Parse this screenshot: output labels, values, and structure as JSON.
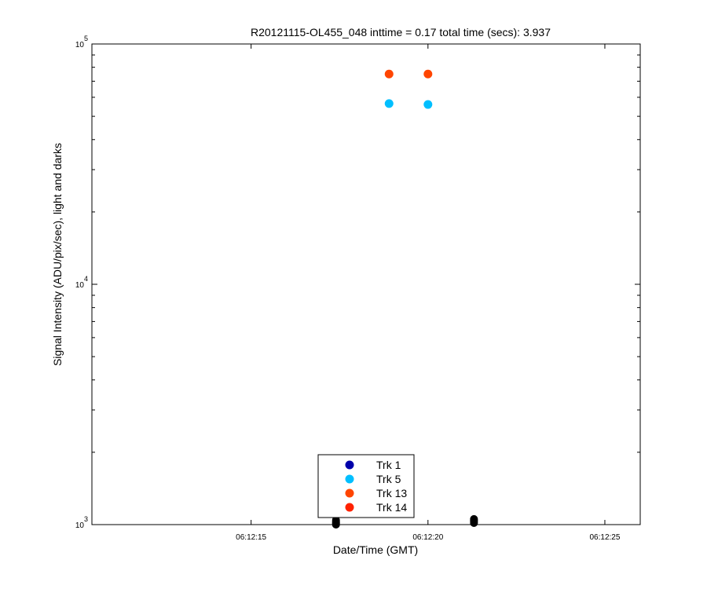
{
  "chart_data": {
    "type": "scatter",
    "title": "R20121115-OL455_048 inttime = 0.17 total time (secs): 3.937",
    "xlabel": "Date/Time (GMT)",
    "ylabel": "Signal Intensity (ADU/pix/sec), light and darks",
    "y_scale": "log",
    "xlim": [
      "06:12:10.5",
      "06:12:26"
    ],
    "ylim": [
      1000,
      100000
    ],
    "x_ticks": [
      "06:12:15",
      "06:12:20",
      "06:12:25"
    ],
    "y_ticks": [
      {
        "value": 1000,
        "base": "10",
        "exp": "3"
      },
      {
        "value": 10000,
        "base": "10",
        "exp": "4"
      },
      {
        "value": 100000,
        "base": "10",
        "exp": "5"
      }
    ],
    "legend_position": "bottom-center",
    "series": [
      {
        "name": "Trk 1",
        "color": "#0000aa",
        "points": []
      },
      {
        "name": "Trk 5",
        "color": "#00bfff",
        "points": [
          {
            "x": "06:12:18.9",
            "y": 56500
          },
          {
            "x": "06:12:20.0",
            "y": 56000
          }
        ]
      },
      {
        "name": "Trk 13",
        "color": "#ff4500",
        "points": [
          {
            "x": "06:12:18.9",
            "y": 75000
          },
          {
            "x": "06:12:20.0",
            "y": 75000
          }
        ]
      },
      {
        "name": "Trk 14",
        "color": "#ff2200",
        "points": []
      }
    ],
    "dark_points": {
      "color": "#000000",
      "points": [
        {
          "x": "06:12:17.4",
          "y": 1000
        },
        {
          "x": "06:12:17.4",
          "y": 1010
        },
        {
          "x": "06:12:17.4",
          "y": 1020
        },
        {
          "x": "06:12:17.4",
          "y": 1030
        },
        {
          "x": "06:12:17.4",
          "y": 1045
        },
        {
          "x": "06:12:21.3",
          "y": 1015
        },
        {
          "x": "06:12:21.3",
          "y": 1025
        },
        {
          "x": "06:12:21.3",
          "y": 1035
        },
        {
          "x": "06:12:21.3",
          "y": 1045
        },
        {
          "x": "06:12:21.3",
          "y": 1055
        }
      ]
    }
  }
}
